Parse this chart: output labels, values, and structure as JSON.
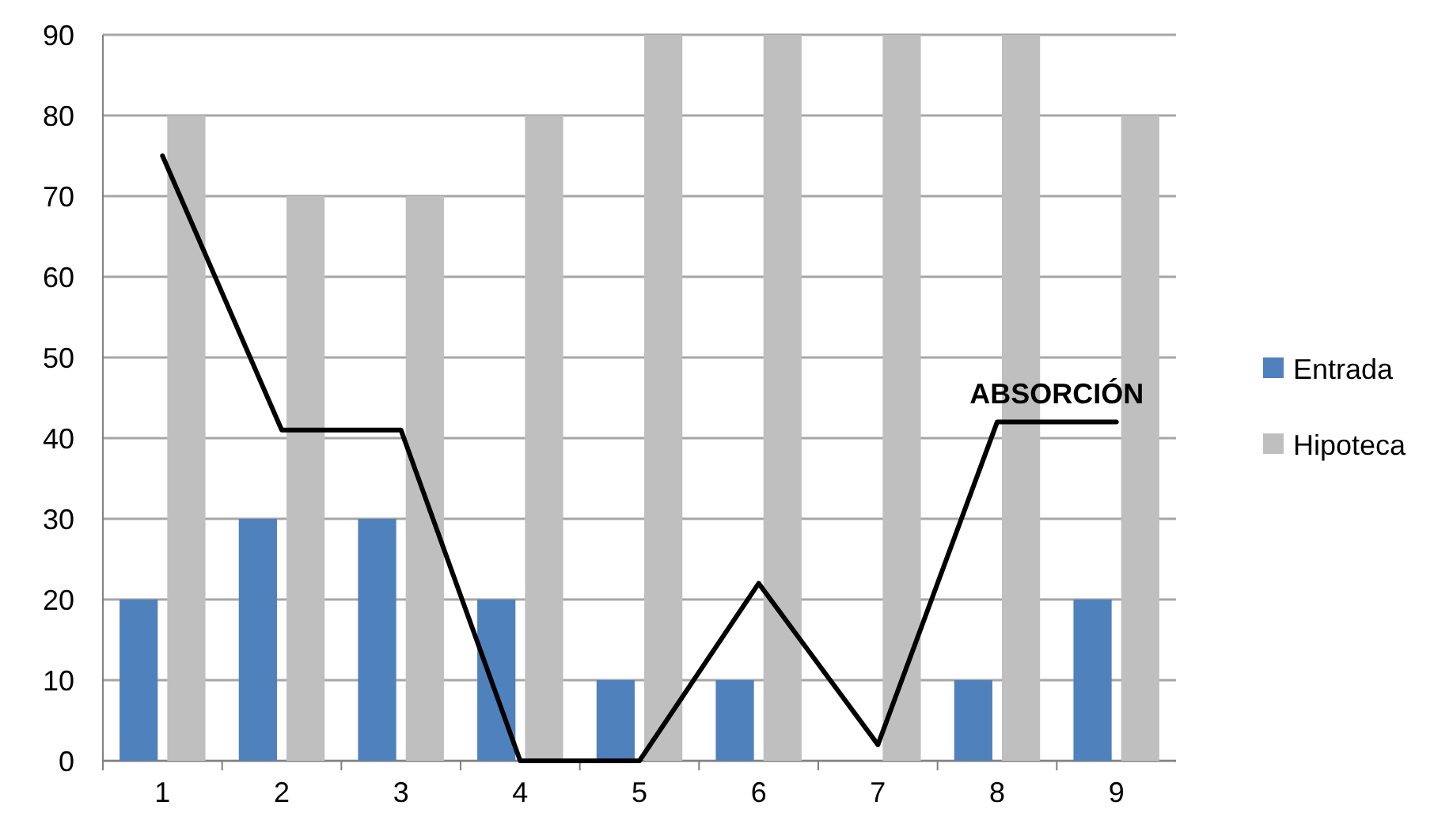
{
  "chart_data": {
    "type": "bar",
    "categories": [
      "1",
      "2",
      "3",
      "4",
      "5",
      "6",
      "7",
      "8",
      "9"
    ],
    "series": [
      {
        "name": "Entrada",
        "color": "#4f81bd",
        "values": [
          20,
          30,
          30,
          20,
          10,
          10,
          0,
          10,
          20
        ]
      },
      {
        "name": "Hipoteca",
        "color": "#bfbfbf",
        "values": [
          80,
          70,
          70,
          80,
          90,
          90,
          90,
          90,
          80
        ]
      },
      {
        "name": "ABSORCIÓN",
        "type": "line",
        "color": "#000000",
        "values": [
          75,
          41,
          41,
          0,
          0,
          22,
          2,
          42,
          42
        ]
      }
    ],
    "ylim": [
      0,
      90
    ],
    "yticks": [
      0,
      10,
      20,
      30,
      40,
      50,
      60,
      70,
      80,
      90
    ],
    "grid": "y",
    "legend": "right",
    "marker": "none",
    "line_style": "solid"
  }
}
